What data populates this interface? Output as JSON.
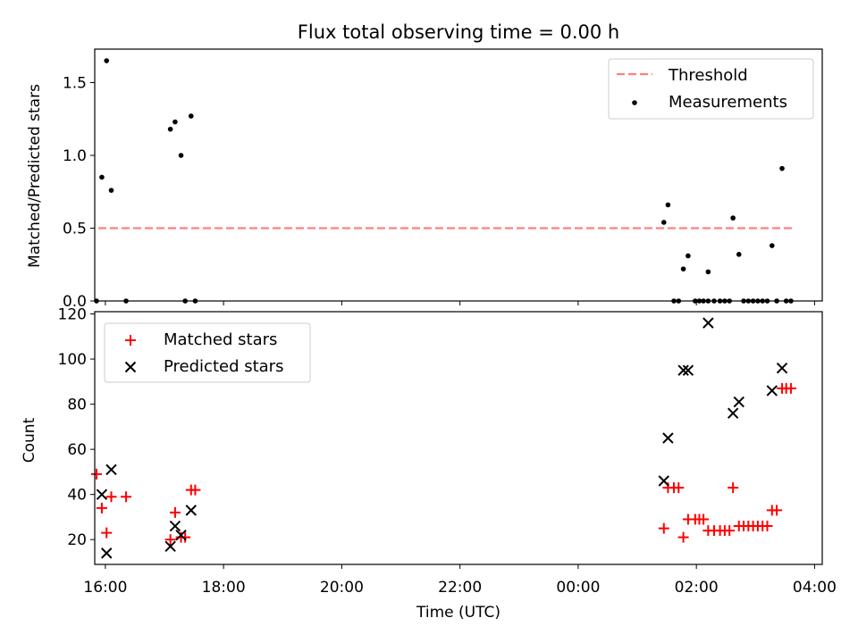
{
  "title": "Flux total observing time = 0.00 h",
  "chart_data": [
    {
      "type": "scatter",
      "panel": "top",
      "title": "Flux total observing time = 0.00 h",
      "xlabel": "",
      "ylabel": "Matched/Predicted stars",
      "x_unit": "hours relative to 16:00 UTC",
      "xlim": [
        -0.18,
        12.13
      ],
      "ylim": [
        0,
        1.73
      ],
      "y_ticks": [
        0.0,
        0.5,
        1.0,
        1.5
      ],
      "y_tick_labels": [
        "0.0",
        "0.5",
        "1.0",
        "1.5"
      ],
      "legend": {
        "position": "top-right",
        "entries": [
          "Threshold",
          "Measurements"
        ]
      },
      "threshold": {
        "name": "Threshold",
        "y": 0.5,
        "x_range": [
          -0.12,
          11.62
        ],
        "color": "#ff7f7f",
        "style": "dashed"
      },
      "series": [
        {
          "name": "Measurements",
          "color": "#000000",
          "marker": "dot",
          "points": [
            [
              -0.15,
              0.0
            ],
            [
              -0.06,
              0.85
            ],
            [
              0.02,
              1.65
            ],
            [
              0.1,
              0.76
            ],
            [
              0.35,
              0.0
            ],
            [
              1.1,
              1.18
            ],
            [
              1.18,
              1.23
            ],
            [
              1.28,
              1.0
            ],
            [
              1.35,
              0.0
            ],
            [
              1.45,
              1.27
            ],
            [
              1.52,
              0.0
            ],
            [
              9.45,
              0.54
            ],
            [
              9.52,
              0.66
            ],
            [
              9.62,
              0.0
            ],
            [
              9.7,
              0.0
            ],
            [
              9.78,
              0.22
            ],
            [
              9.86,
              0.31
            ],
            [
              9.98,
              0.0
            ],
            [
              10.05,
              0.0
            ],
            [
              10.12,
              0.0
            ],
            [
              10.2,
              0.0
            ],
            [
              10.2,
              0.2
            ],
            [
              10.3,
              0.0
            ],
            [
              10.4,
              0.0
            ],
            [
              10.48,
              0.0
            ],
            [
              10.56,
              0.0
            ],
            [
              10.62,
              0.57
            ],
            [
              10.72,
              0.32
            ],
            [
              10.8,
              0.0
            ],
            [
              10.88,
              0.0
            ],
            [
              10.96,
              0.0
            ],
            [
              11.04,
              0.0
            ],
            [
              11.12,
              0.0
            ],
            [
              11.2,
              0.0
            ],
            [
              11.28,
              0.38
            ],
            [
              11.36,
              0.0
            ],
            [
              11.45,
              0.91
            ],
            [
              11.52,
              0.0
            ],
            [
              11.6,
              0.0
            ]
          ]
        }
      ]
    },
    {
      "type": "scatter",
      "panel": "bottom",
      "xlabel": "Time (UTC)",
      "ylabel": "Count",
      "x_unit": "hours relative to 16:00 UTC",
      "xlim": [
        -0.18,
        12.13
      ],
      "ylim": [
        9,
        121
      ],
      "x_ticks": [
        0,
        2,
        4,
        6,
        8,
        10,
        12
      ],
      "x_tick_labels": [
        "16:00",
        "18:00",
        "20:00",
        "22:00",
        "00:00",
        "02:00",
        "04:00"
      ],
      "y_ticks": [
        20,
        40,
        60,
        80,
        100,
        120
      ],
      "y_tick_labels": [
        "20",
        "40",
        "60",
        "80",
        "100",
        "120"
      ],
      "legend": {
        "position": "top-left",
        "entries": [
          "Matched stars",
          "Predicted stars"
        ]
      },
      "series": [
        {
          "name": "Matched stars",
          "color": "#ff0000",
          "marker": "plus",
          "points": [
            [
              -0.15,
              49
            ],
            [
              -0.06,
              34
            ],
            [
              0.02,
              23
            ],
            [
              0.1,
              39
            ],
            [
              0.35,
              39
            ],
            [
              1.1,
              20
            ],
            [
              1.18,
              32
            ],
            [
              1.28,
              21
            ],
            [
              1.35,
              21
            ],
            [
              1.45,
              42
            ],
            [
              1.52,
              42
            ],
            [
              9.45,
              25
            ],
            [
              9.52,
              43
            ],
            [
              9.62,
              43
            ],
            [
              9.7,
              43
            ],
            [
              9.78,
              21
            ],
            [
              9.86,
              29
            ],
            [
              9.98,
              29
            ],
            [
              10.05,
              29
            ],
            [
              10.12,
              29
            ],
            [
              10.2,
              24
            ],
            [
              10.3,
              24
            ],
            [
              10.4,
              24
            ],
            [
              10.48,
              24
            ],
            [
              10.56,
              24
            ],
            [
              10.62,
              43
            ],
            [
              10.72,
              26
            ],
            [
              10.8,
              26
            ],
            [
              10.88,
              26
            ],
            [
              10.96,
              26
            ],
            [
              11.04,
              26
            ],
            [
              11.12,
              26
            ],
            [
              11.2,
              26
            ],
            [
              11.28,
              33
            ],
            [
              11.36,
              33
            ],
            [
              11.45,
              87
            ],
            [
              11.52,
              87
            ],
            [
              11.6,
              87
            ]
          ]
        },
        {
          "name": "Predicted stars",
          "color": "#000000",
          "marker": "x",
          "points": [
            [
              -0.06,
              40
            ],
            [
              0.02,
              14
            ],
            [
              0.1,
              51
            ],
            [
              1.1,
              17
            ],
            [
              1.18,
              26
            ],
            [
              1.28,
              22
            ],
            [
              1.45,
              33
            ],
            [
              9.45,
              46
            ],
            [
              9.52,
              65
            ],
            [
              9.78,
              95
            ],
            [
              9.86,
              95
            ],
            [
              10.2,
              116
            ],
            [
              10.62,
              76
            ],
            [
              10.72,
              81
            ],
            [
              11.28,
              86
            ],
            [
              11.45,
              96
            ]
          ]
        }
      ]
    }
  ]
}
